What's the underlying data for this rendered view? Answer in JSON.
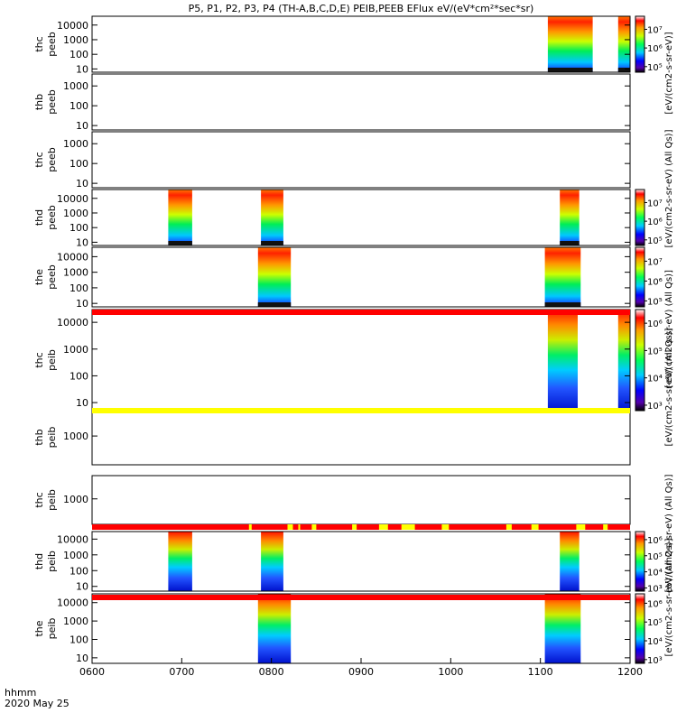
{
  "chart_data": {
    "type": "heatmap",
    "title": "P5, P1, P2, P3, P4 (TH-A,B,C,D,E) PEIB,PEEB EFlux eV/(eV*cm²*sec*sr)",
    "x_label_line1": "hhmm",
    "x_label_line2": "2020 May 25",
    "x_ticks": [
      "0600",
      "0700",
      "0800",
      "0900",
      "1000",
      "1100",
      "1200"
    ],
    "xlim": [
      "06:00",
      "12:00"
    ],
    "y_scale": "log",
    "panels": [
      {
        "name": "thc_peeb_top",
        "label_line1": "thc",
        "label_line2": "peeb",
        "ylim": [
          6,
          40000
        ],
        "y_ticks": [
          "10",
          "100",
          "1000",
          "10000"
        ],
        "intervals_hhmm": [
          [
            "11:05",
            "11:35"
          ],
          [
            "11:52",
            "12:00"
          ]
        ],
        "kind": "electron",
        "colorbar": "electron",
        "ring": ""
      },
      {
        "name": "thb_peeb",
        "label_line1": "thb",
        "label_line2": "peeb",
        "ylim": [
          6,
          4000
        ],
        "y_ticks": [
          "10",
          "100",
          "1000"
        ],
        "intervals_hhmm": [],
        "kind": "empty",
        "colorbar": "",
        "ring": ""
      },
      {
        "name": "thc_peeb",
        "label_line1": "thc",
        "label_line2": "peeb",
        "ylim": [
          6,
          4000
        ],
        "y_ticks": [
          "10",
          "100",
          "1000"
        ],
        "intervals_hhmm": [],
        "kind": "empty",
        "colorbar": "",
        "ring": ""
      },
      {
        "name": "thd_peeb",
        "label_line1": "thd",
        "label_line2": "peeb",
        "ylim": [
          6,
          40000
        ],
        "y_ticks": [
          "10",
          "100",
          "1000",
          "10000"
        ],
        "intervals_hhmm": [
          [
            "06:51",
            "07:07"
          ],
          [
            "07:53",
            "08:08"
          ],
          [
            "11:13",
            "11:26"
          ]
        ],
        "kind": "electron",
        "colorbar": "electron",
        "ring": ""
      },
      {
        "name": "the_peeb",
        "label_line1": "the",
        "label_line2": "peeb",
        "ylim": [
          6,
          40000
        ],
        "y_ticks": [
          "10",
          "100",
          "1000",
          "10000"
        ],
        "intervals_hhmm": [
          [
            "07:51",
            "08:13"
          ],
          [
            "11:03",
            "11:27"
          ]
        ],
        "kind": "electron",
        "colorbar": "electron",
        "ring": "red"
      },
      {
        "name": "thc_peib_top",
        "label_line1": "thc",
        "label_line2": "peib",
        "ylim": [
          5,
          30000
        ],
        "y_ticks": [
          "10",
          "100",
          "1000",
          "10000"
        ],
        "intervals_hhmm": [
          [
            "11:05",
            "11:25"
          ],
          [
            "11:52",
            "12:00"
          ]
        ],
        "kind": "ion",
        "colorbar": "ion",
        "ring": "yellow"
      },
      {
        "name": "thb_peib",
        "label_line1": "thb",
        "label_line2": "peib",
        "ylim": [
          300,
          3000
        ],
        "y_ticks": [
          "1000"
        ],
        "intervals_hhmm": [],
        "kind": "empty",
        "colorbar": "",
        "ring": "yellow"
      },
      {
        "name": "thc_peib",
        "label_line1": "thc",
        "label_line2": "peib",
        "ylim": [
          300,
          3000
        ],
        "y_ticks": [
          "1000"
        ],
        "intervals_hhmm": [],
        "kind": "empty",
        "colorbar": "",
        "ring": "mixed"
      },
      {
        "name": "thd_peib",
        "label_line1": "thd",
        "label_line2": "peib",
        "ylim": [
          5,
          30000
        ],
        "y_ticks": [
          "10",
          "100",
          "1000",
          "10000"
        ],
        "intervals_hhmm": [
          [
            "06:51",
            "07:07"
          ],
          [
            "07:53",
            "08:08"
          ],
          [
            "11:13",
            "11:26"
          ]
        ],
        "kind": "ion",
        "colorbar": "ion",
        "ring": "red"
      },
      {
        "name": "the_peib",
        "label_line1": "the",
        "label_line2": "peib",
        "ylim": [
          5,
          30000
        ],
        "y_ticks": [
          "10",
          "100",
          "1000",
          "10000"
        ],
        "intervals_hhmm": [
          [
            "07:51",
            "08:13"
          ],
          [
            "11:03",
            "11:27"
          ]
        ],
        "kind": "ion",
        "colorbar": "ion",
        "ring": ""
      }
    ],
    "colorbars": {
      "electron": {
        "ticks": [
          "10⁵",
          "10⁶",
          "10⁷"
        ],
        "range_log": [
          4.7,
          7.7
        ]
      },
      "ion": {
        "ticks": [
          "10³",
          "10⁴",
          "10⁵",
          "10⁶"
        ],
        "range_log": [
          2.8,
          6.5
        ]
      }
    },
    "colorbar_unit_labels": [
      {
        "text": "[eV/(cm2-s-sr-eV)]",
        "panels": [
          0,
          1
        ]
      },
      {
        "text": "[eV/(cm2-s-sr-eV) (All Qs)]",
        "panels": [
          2,
          3
        ]
      },
      {
        "text": "[eV/(cm2-s-sr-eV) (All Qs)]",
        "panels": [
          4,
          5
        ]
      },
      {
        "text": "[eV/(cm2-s-sr-eV) (All Qs)]",
        "panels": [
          5,
          6
        ]
      },
      {
        "text": "[eV/(cm2-s-sr-eV) (All Qs)]",
        "panels": [
          7,
          8
        ]
      },
      {
        "text": "[eV/(cm2-s-sr-eV) (All Qs)]",
        "panels": [
          8,
          9
        ]
      }
    ],
    "colors": {
      "red": "#ff0000",
      "yellow": "#ffff00"
    }
  }
}
